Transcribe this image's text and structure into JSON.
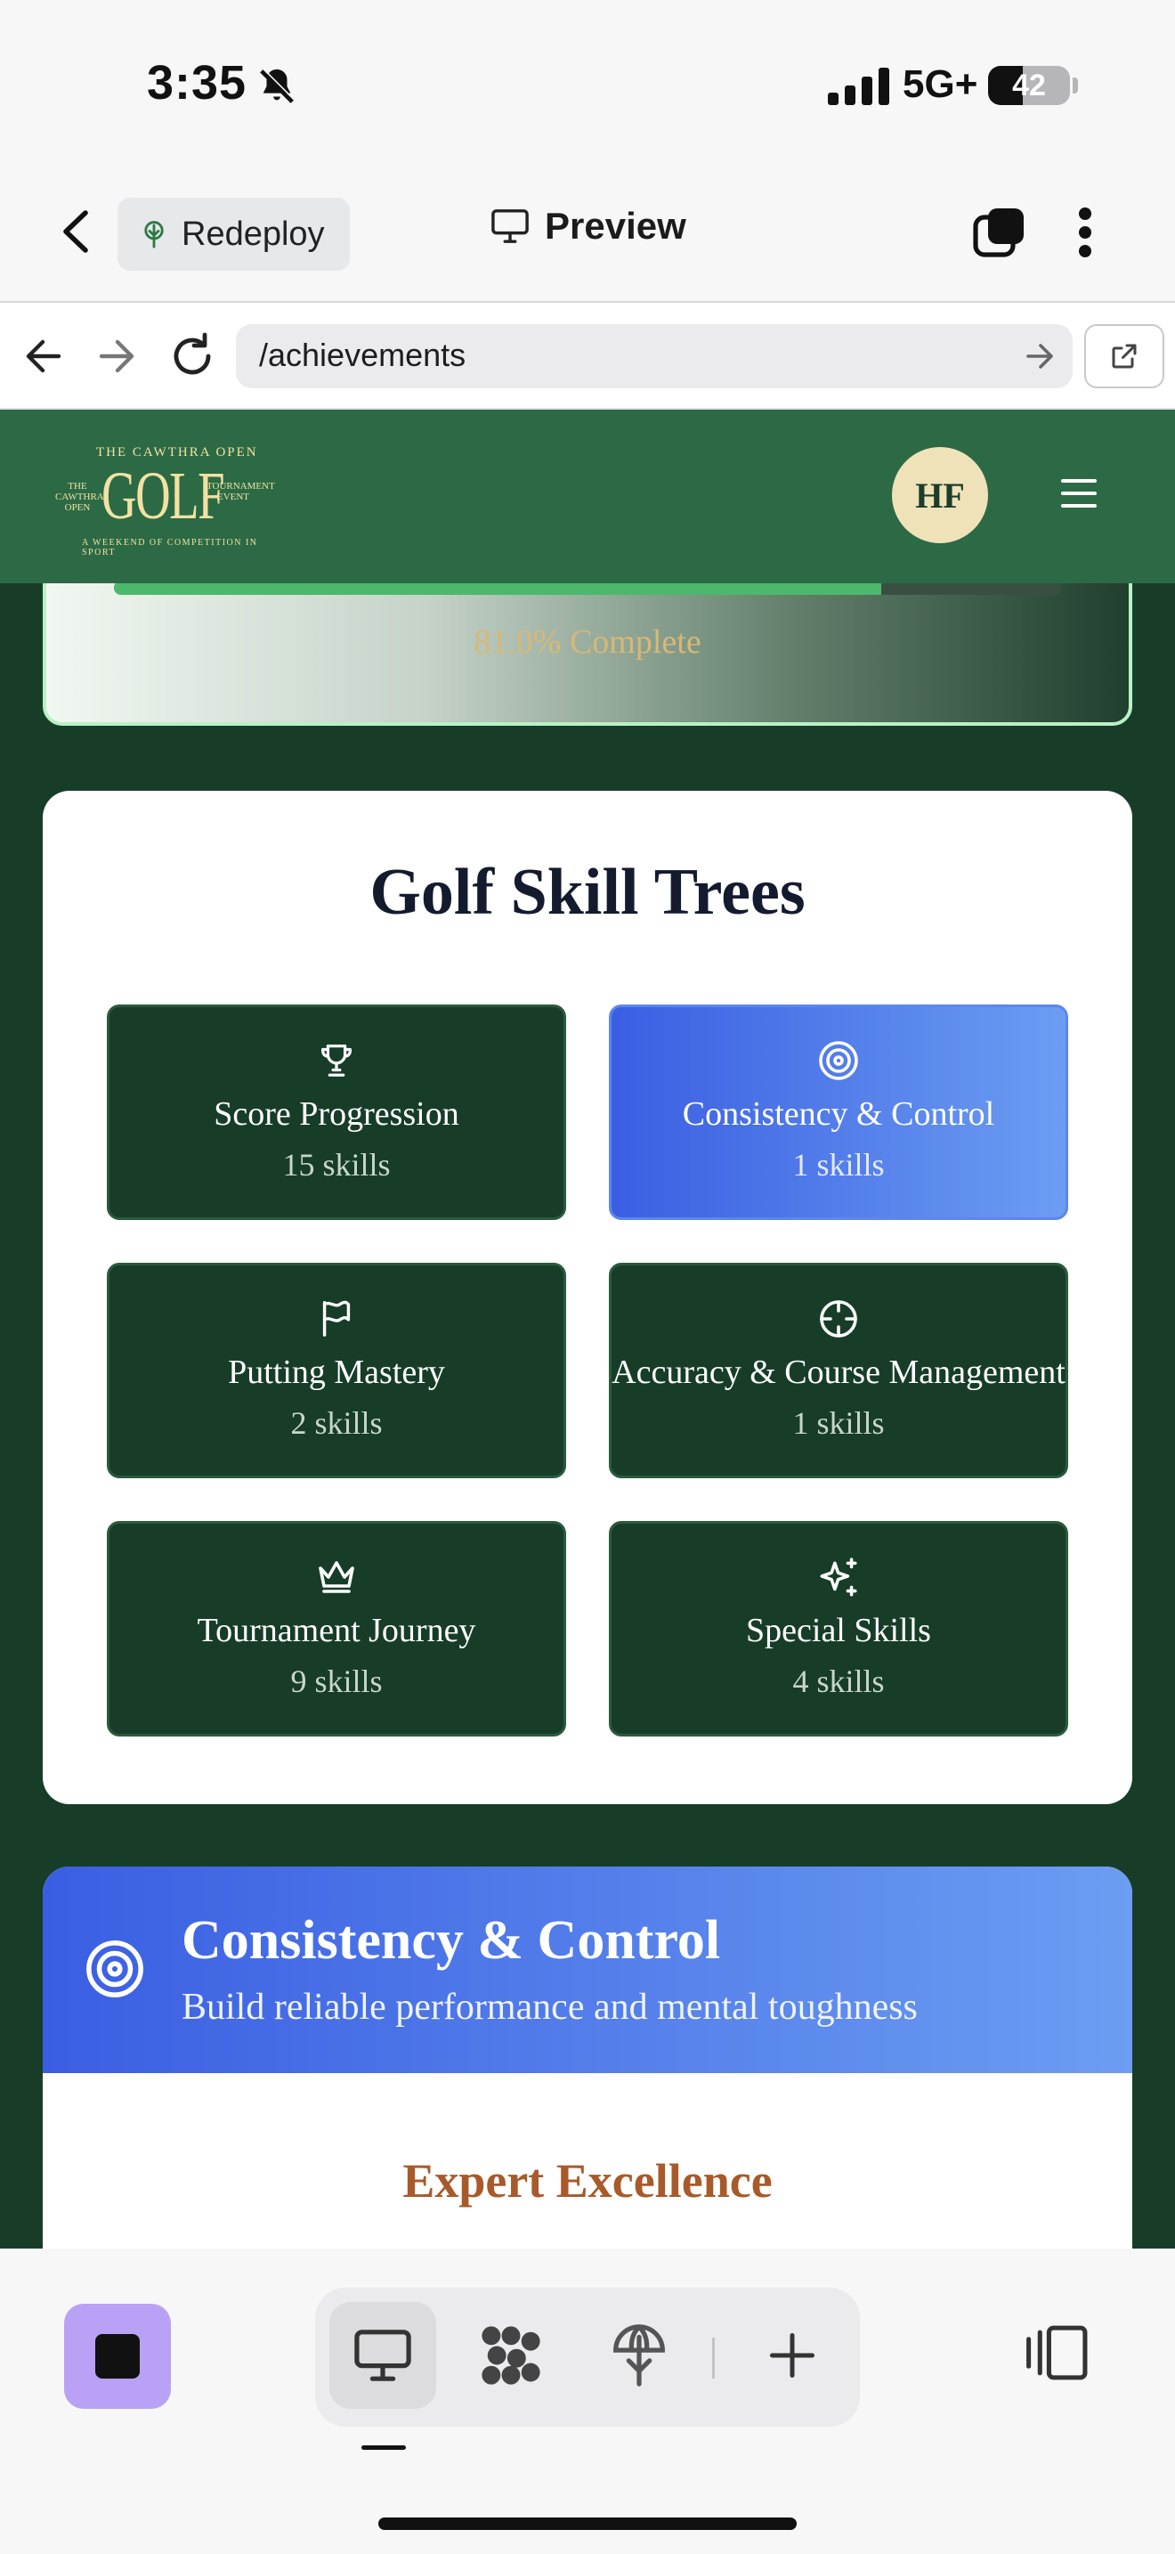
{
  "status_bar": {
    "time": "3:35",
    "network": "5G+",
    "battery": "42",
    "battery_level": 0.42
  },
  "app_header": {
    "redeploy_label": "Redeploy",
    "preview_label": "Preview"
  },
  "url_bar": {
    "url": "/achievements"
  },
  "site": {
    "logo": {
      "top_line": "THE CAWTHRA OPEN",
      "main": "GOLF",
      "left_text": "THE CAWTHRA OPEN",
      "right_text": "TOURNAMENT EVENT",
      "bottom_line": "A WEEKEND OF COMPETITION IN SPORT"
    },
    "avatar_initials": "HF",
    "progress": {
      "text": "81.0% Complete",
      "fraction": 0.81
    },
    "skill_trees": {
      "title": "Golf Skill Trees",
      "items": [
        {
          "name": "Score Progression",
          "count": "15 skills",
          "icon": "trophy-icon",
          "active": false
        },
        {
          "name": "Consistency & Control",
          "count": "1 skills",
          "icon": "target-icon",
          "active": true
        },
        {
          "name": "Putting Mastery",
          "count": "2 skills",
          "icon": "flag-icon",
          "active": false
        },
        {
          "name": "Accuracy & Course Management",
          "count": "1 skills",
          "icon": "crosshair-icon",
          "active": false
        },
        {
          "name": "Tournament Journey",
          "count": "9 skills",
          "icon": "crown-icon",
          "active": false
        },
        {
          "name": "Special Skills",
          "count": "4 skills",
          "icon": "sparkles-icon",
          "active": false
        }
      ]
    },
    "selected_tree": {
      "title": "Consistency & Control",
      "subtitle": "Build reliable performance and mental toughness",
      "section": "Expert Excellence"
    }
  },
  "colors": {
    "site_green": "#173d29",
    "header_green": "#2c6a45",
    "active_blue_start": "#3a5ee2",
    "active_blue_end": "#6c9df2",
    "gold": "#d9b874",
    "section_brown": "#a85a2a"
  }
}
